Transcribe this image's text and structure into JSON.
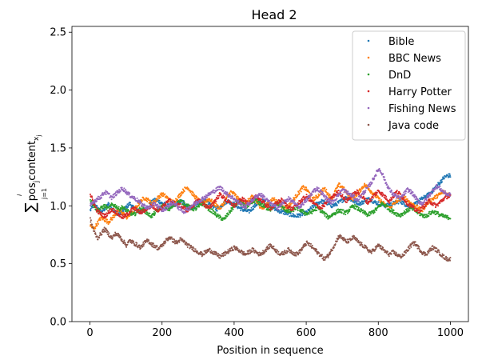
{
  "chart_data": {
    "type": "scatter",
    "title": "Head 2",
    "xlabel": "Position in sequence",
    "ylabel": "Σ pos_j content_{x_j} (j = 1 … i)",
    "xlim": [
      -50,
      1050
    ],
    "ylim": [
      0.0,
      2.55
    ],
    "xticks": [
      0,
      200,
      400,
      600,
      800,
      1000
    ],
    "yticks": [
      0.0,
      0.5,
      1.0,
      1.5,
      2.0,
      2.5
    ],
    "xtick_labels": [
      "0",
      "200",
      "400",
      "600",
      "800",
      "1000"
    ],
    "ytick_labels": [
      "0.0",
      "0.5",
      "1.0",
      "1.5",
      "2.0",
      "2.5"
    ],
    "grid": false,
    "legend_position": "top-right",
    "x_range": [
      1,
      1000
    ],
    "sample_step": 10,
    "series": [
      {
        "name": "Bible",
        "color": "#1f77b4",
        "values": [
          0.96,
          1.02,
          0.98,
          0.95,
          0.97,
          1.02,
          0.98,
          0.94,
          0.93,
          0.95,
          0.99,
          1.02,
          0.98,
          0.96,
          0.94,
          0.97,
          1.0,
          1.03,
          1.05,
          1.04,
          1.02,
          1.01,
          0.99,
          1.0,
          1.02,
          1.04,
          1.03,
          1.0,
          0.98,
          0.99,
          1.02,
          1.05,
          1.04,
          1.02,
          1.0,
          0.97,
          0.99,
          1.02,
          1.04,
          1.03,
          1.01,
          0.99,
          0.97,
          0.96,
          0.95,
          0.98,
          1.01,
          1.03,
          1.04,
          1.02,
          1.0,
          0.98,
          0.96,
          0.95,
          0.94,
          0.93,
          0.92,
          0.91,
          0.92,
          0.93,
          0.94,
          0.97,
          1.0,
          1.02,
          1.04,
          1.03,
          1.02,
          1.0,
          1.01,
          1.03,
          1.05,
          1.07,
          1.06,
          1.04,
          1.03,
          1.02,
          1.04,
          1.06,
          1.05,
          1.03,
          1.02,
          1.01,
          1.0,
          1.01,
          1.02,
          1.03,
          1.04,
          1.02,
          1.0,
          0.99,
          1.01,
          1.04,
          1.06,
          1.08,
          1.1,
          1.13,
          1.17,
          1.2,
          1.24,
          1.26
        ]
      },
      {
        "name": "BBC News",
        "color": "#ff7f0e",
        "values": [
          0.83,
          0.8,
          0.85,
          0.9,
          0.88,
          0.86,
          0.89,
          0.93,
          0.96,
          0.94,
          0.9,
          0.92,
          0.96,
          1.0,
          1.04,
          1.07,
          1.05,
          1.02,
          1.04,
          1.08,
          1.1,
          1.08,
          1.05,
          1.03,
          1.06,
          1.1,
          1.14,
          1.16,
          1.12,
          1.08,
          1.05,
          1.02,
          1.04,
          1.06,
          1.03,
          1.0,
          0.98,
          1.02,
          1.08,
          1.12,
          1.1,
          1.06,
          1.04,
          1.02,
          1.05,
          1.08,
          1.04,
          1.0,
          0.98,
          1.01,
          1.04,
          1.06,
          1.03,
          1.0,
          0.98,
          1.0,
          1.04,
          1.08,
          1.12,
          1.16,
          1.14,
          1.1,
          1.06,
          1.08,
          1.12,
          1.15,
          1.1,
          1.06,
          1.13,
          1.18,
          1.16,
          1.12,
          1.08,
          1.06,
          1.1,
          1.14,
          1.18,
          1.16,
          1.12,
          1.09,
          1.06,
          1.03,
          1.0,
          0.98,
          1.01,
          1.04,
          1.06,
          1.08,
          1.05,
          1.02,
          1.0,
          0.98,
          0.96,
          1.0,
          1.04,
          1.06,
          1.08,
          1.1,
          1.12,
          1.1
        ]
      },
      {
        "name": "DnD",
        "color": "#2ca02c",
        "values": [
          1.05,
          1.0,
          0.96,
          0.98,
          1.0,
          0.97,
          1.01,
          1.0,
          0.97,
          0.99,
          0.96,
          0.94,
          0.92,
          0.95,
          0.98,
          0.96,
          0.93,
          0.91,
          0.94,
          0.97,
          1.0,
          0.98,
          0.97,
          1.0,
          1.02,
          1.04,
          1.02,
          1.0,
          0.98,
          0.97,
          0.99,
          1.02,
          1.0,
          0.97,
          0.95,
          0.92,
          0.9,
          0.88,
          0.92,
          0.96,
          1.0,
          1.03,
          1.02,
          0.99,
          1.0,
          1.03,
          1.05,
          1.02,
          1.0,
          0.98,
          0.97,
          1.0,
          1.02,
          0.99,
          0.97,
          0.95,
          0.96,
          0.98,
          0.97,
          0.95,
          0.93,
          0.94,
          0.96,
          0.98,
          0.96,
          0.93,
          0.9,
          0.92,
          0.94,
          0.96,
          0.95,
          0.94,
          0.97,
          1.0,
          0.98,
          0.96,
          0.94,
          0.92,
          0.94,
          0.96,
          0.99,
          1.02,
          1.0,
          0.97,
          0.95,
          0.93,
          0.92,
          0.94,
          0.96,
          0.98,
          0.96,
          0.94,
          0.92,
          0.91,
          0.93,
          0.95,
          0.94,
          0.92,
          0.91,
          0.9
        ]
      },
      {
        "name": "Harry Potter",
        "color": "#d62728",
        "values": [
          1.1,
          1.02,
          0.95,
          0.93,
          0.91,
          0.94,
          0.97,
          0.95,
          0.92,
          0.9,
          0.92,
          0.95,
          0.98,
          0.96,
          0.94,
          0.96,
          0.98,
          1.0,
          0.98,
          0.96,
          0.99,
          1.02,
          1.05,
          1.03,
          1.01,
          1.0,
          0.98,
          0.96,
          0.99,
          1.02,
          1.05,
          1.03,
          1.0,
          0.98,
          1.02,
          1.06,
          1.1,
          1.07,
          1.04,
          1.02,
          1.0,
          1.03,
          1.06,
          1.04,
          1.02,
          1.05,
          1.08,
          1.06,
          1.03,
          1.0,
          0.98,
          1.0,
          1.03,
          1.05,
          1.02,
          0.99,
          0.97,
          1.0,
          1.03,
          1.06,
          1.08,
          1.05,
          1.02,
          1.0,
          0.98,
          1.01,
          1.04,
          1.07,
          1.1,
          1.12,
          1.08,
          1.04,
          1.07,
          1.1,
          1.12,
          1.09,
          1.06,
          1.03,
          1.06,
          1.1,
          1.13,
          1.1,
          1.07,
          1.04,
          1.08,
          1.12,
          1.1,
          1.06,
          1.02,
          1.0,
          0.97,
          0.95,
          0.98,
          1.01,
          1.04,
          1.02,
          1.0,
          1.03,
          1.06,
          1.08
        ]
      },
      {
        "name": "Fishing News",
        "color": "#9467bd",
        "values": [
          1.0,
          1.04,
          1.06,
          1.08,
          1.12,
          1.1,
          1.07,
          1.1,
          1.13,
          1.15,
          1.12,
          1.09,
          1.07,
          1.05,
          1.02,
          1.0,
          0.98,
          1.0,
          1.02,
          0.99,
          0.96,
          0.98,
          1.01,
          1.03,
          1.0,
          0.97,
          0.95,
          0.97,
          1.0,
          1.02,
          1.04,
          1.06,
          1.08,
          1.1,
          1.12,
          1.14,
          1.16,
          1.13,
          1.1,
          1.08,
          1.06,
          1.03,
          1.01,
          0.99,
          1.02,
          1.05,
          1.08,
          1.1,
          1.08,
          1.05,
          1.02,
          1.0,
          0.98,
          1.01,
          1.04,
          1.06,
          1.04,
          1.01,
          0.99,
          1.02,
          1.05,
          1.09,
          1.13,
          1.15,
          1.12,
          1.08,
          1.05,
          1.03,
          1.06,
          1.1,
          1.14,
          1.12,
          1.1,
          1.08,
          1.05,
          1.08,
          1.12,
          1.16,
          1.2,
          1.26,
          1.32,
          1.28,
          1.2,
          1.14,
          1.1,
          1.08,
          1.06,
          1.1,
          1.14,
          1.12,
          1.08,
          1.04,
          1.02,
          1.05,
          1.09,
          1.13,
          1.17,
          1.15,
          1.12,
          1.1
        ]
      },
      {
        "name": "Java code",
        "color": "#8c564b",
        "values": [
          0.88,
          0.78,
          0.72,
          0.76,
          0.8,
          0.76,
          0.72,
          0.76,
          0.74,
          0.7,
          0.66,
          0.7,
          0.68,
          0.66,
          0.64,
          0.68,
          0.7,
          0.67,
          0.65,
          0.63,
          0.66,
          0.7,
          0.73,
          0.7,
          0.68,
          0.71,
          0.69,
          0.66,
          0.64,
          0.62,
          0.6,
          0.58,
          0.6,
          0.62,
          0.6,
          0.58,
          0.56,
          0.58,
          0.6,
          0.62,
          0.64,
          0.62,
          0.6,
          0.58,
          0.6,
          0.62,
          0.6,
          0.58,
          0.6,
          0.63,
          0.66,
          0.63,
          0.6,
          0.58,
          0.6,
          0.62,
          0.6,
          0.58,
          0.6,
          0.64,
          0.68,
          0.66,
          0.63,
          0.6,
          0.57,
          0.54,
          0.57,
          0.62,
          0.68,
          0.74,
          0.72,
          0.69,
          0.7,
          0.73,
          0.7,
          0.67,
          0.65,
          0.62,
          0.6,
          0.63,
          0.66,
          0.63,
          0.6,
          0.58,
          0.6,
          0.58,
          0.56,
          0.58,
          0.62,
          0.66,
          0.68,
          0.64,
          0.6,
          0.58,
          0.61,
          0.64,
          0.62,
          0.59,
          0.56,
          0.54
        ]
      }
    ]
  }
}
